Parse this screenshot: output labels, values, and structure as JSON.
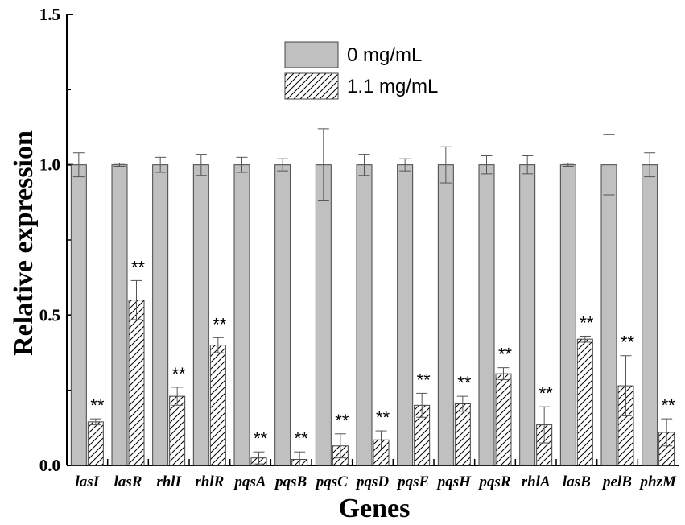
{
  "chart_data": {
    "type": "bar",
    "xlabel": "Genes",
    "ylabel": "Relative expression",
    "ylim": [
      0,
      1.5
    ],
    "yticks": [
      "0.0",
      "0.5",
      "1.0",
      "1.5"
    ],
    "categories": [
      "lasI",
      "lasR",
      "rhlI",
      "rhlR",
      "pqsA",
      "pqsB",
      "pqsC",
      "pqsD",
      "pqsE",
      "pqsH",
      "pqsR",
      "rhlA",
      "lasB",
      "pelB",
      "phzM"
    ],
    "series": [
      {
        "name": "0 mg/mL",
        "fill": "#c0c0c0",
        "values": [
          1,
          1,
          1,
          1,
          1,
          1,
          1,
          1,
          1,
          1,
          1,
          1,
          1,
          1,
          1
        ],
        "errors": [
          0.04,
          0.005,
          0.025,
          0.035,
          0.025,
          0.02,
          0.12,
          0.035,
          0.02,
          0.06,
          0.03,
          0.03,
          0.005,
          0.1,
          0.04
        ]
      },
      {
        "name": "1.1 mg/mL",
        "fill": "hatch",
        "values": [
          0.145,
          0.55,
          0.23,
          0.4,
          0.025,
          0.02,
          0.065,
          0.085,
          0.2,
          0.205,
          0.305,
          0.135,
          0.42,
          0.265,
          0.11
        ],
        "errors": [
          0.01,
          0.065,
          0.03,
          0.025,
          0.02,
          0.025,
          0.04,
          0.03,
          0.04,
          0.025,
          0.02,
          0.06,
          0.01,
          0.1,
          0.045
        ]
      }
    ],
    "annotations": [
      "**",
      "**",
      "**",
      "**",
      "**",
      "**",
      "**",
      "**",
      "**",
      "**",
      "**",
      "**",
      "**",
      "**",
      "**"
    ],
    "legend_position": "top-center",
    "grid": false
  }
}
